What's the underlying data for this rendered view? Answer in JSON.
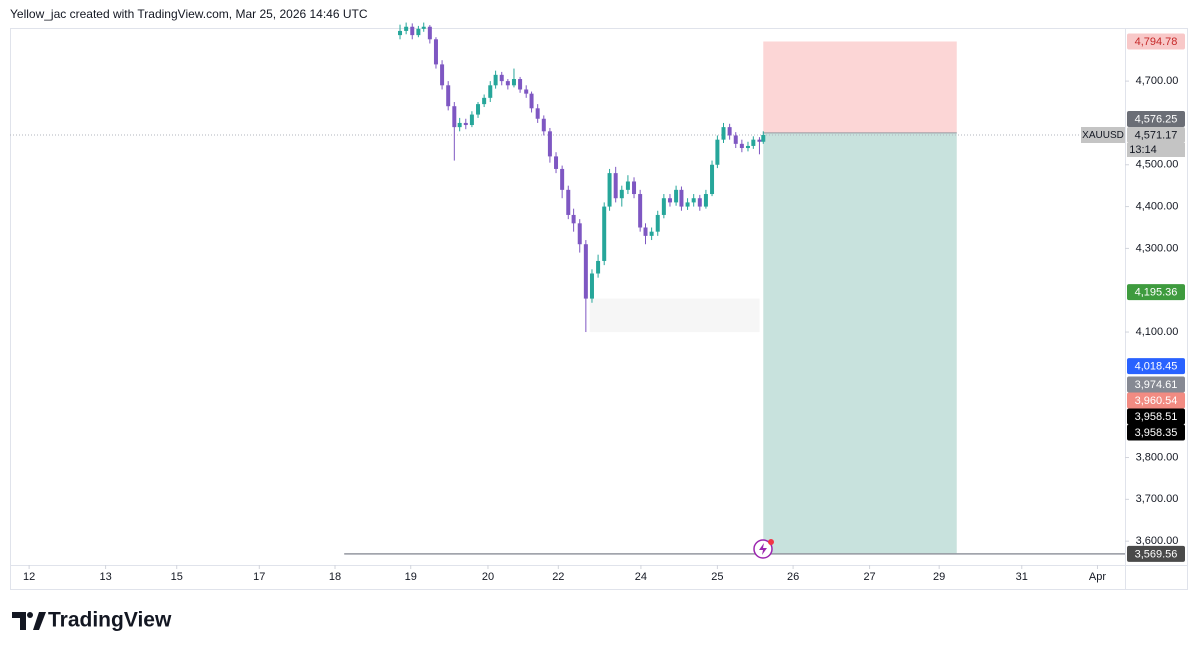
{
  "header": {
    "text": "Yellow_jac created with TradingView.com, Mar 25, 2026 14:46 UTC"
  },
  "footer": {
    "logo_text": "TradingView"
  },
  "chart_data": {
    "type": "candlestick",
    "symbol": "XAUUSD",
    "countdown": "13:14",
    "up_color": "#26a69a",
    "down_color": "#7e57c2",
    "xlim": [
      -0.25,
      14.33
    ],
    "ylim": [
      3543,
      4827
    ],
    "xticks": [
      {
        "value": 0,
        "label": "12"
      },
      {
        "value": 1.0,
        "label": "13"
      },
      {
        "value": 1.93,
        "label": "15"
      },
      {
        "value": 3.01,
        "label": "17"
      },
      {
        "value": 4.0,
        "label": "18"
      },
      {
        "value": 4.99,
        "label": "19"
      },
      {
        "value": 6.0,
        "label": "20"
      },
      {
        "value": 6.92,
        "label": "22"
      },
      {
        "value": 8.0,
        "label": "24"
      },
      {
        "value": 9.0,
        "label": "25"
      },
      {
        "value": 9.99,
        "label": "26"
      },
      {
        "value": 10.99,
        "label": "27"
      },
      {
        "value": 11.9,
        "label": "29"
      },
      {
        "value": 12.98,
        "label": "31"
      },
      {
        "value": 13.97,
        "label": "Apr"
      }
    ],
    "yticks": [
      {
        "value": 3600,
        "label": "3,600.00"
      },
      {
        "value": 3700,
        "label": "3,700.00"
      },
      {
        "value": 3800,
        "label": "3,800.00"
      },
      {
        "value": 4100,
        "label": "4,100.00"
      },
      {
        "value": 4300,
        "label": "4,300.00"
      },
      {
        "value": 4400,
        "label": "4,400.00"
      },
      {
        "value": 4500,
        "label": "4,500.00"
      },
      {
        "value": 4700,
        "label": "4,700.00"
      }
    ],
    "x": [
      4.85,
      4.93,
      5.01,
      5.09,
      5.16,
      5.24,
      5.32,
      5.4,
      5.48,
      5.56,
      5.63,
      5.71,
      5.79,
      5.87,
      5.95,
      6.03,
      6.1,
      6.18,
      6.26,
      6.34,
      6.42,
      6.5,
      6.57,
      6.65,
      6.73,
      6.81,
      6.89,
      6.97,
      7.05,
      7.12,
      7.2,
      7.28,
      7.36,
      7.44,
      7.52,
      7.59,
      7.67,
      7.75,
      7.83,
      7.91,
      7.99,
      8.06,
      8.14,
      8.22,
      8.3,
      8.38,
      8.46,
      8.53,
      8.61,
      8.69,
      8.77,
      8.85,
      8.93,
      9.0,
      9.08,
      9.16,
      9.24,
      9.32,
      9.4,
      9.47,
      9.55,
      9.6
    ],
    "ohlc": [
      [
        4810,
        4835,
        4800,
        4820
      ],
      [
        4820,
        4840,
        4812,
        4830
      ],
      [
        4830,
        4838,
        4800,
        4810
      ],
      [
        4810,
        4832,
        4805,
        4825
      ],
      [
        4825,
        4840,
        4818,
        4830
      ],
      [
        4830,
        4834,
        4790,
        4800
      ],
      [
        4800,
        4805,
        4730,
        4740
      ],
      [
        4740,
        4750,
        4680,
        4690
      ],
      [
        4690,
        4700,
        4630,
        4640
      ],
      [
        4640,
        4650,
        4510,
        4590
      ],
      [
        4590,
        4612,
        4580,
        4600
      ],
      [
        4600,
        4610,
        4585,
        4595
      ],
      [
        4595,
        4628,
        4590,
        4620
      ],
      [
        4620,
        4650,
        4612,
        4645
      ],
      [
        4645,
        4668,
        4638,
        4660
      ],
      [
        4660,
        4700,
        4650,
        4690
      ],
      [
        4690,
        4725,
        4682,
        4715
      ],
      [
        4715,
        4722,
        4690,
        4700
      ],
      [
        4700,
        4705,
        4680,
        4690
      ],
      [
        4690,
        4730,
        4685,
        4705
      ],
      [
        4705,
        4710,
        4672,
        4680
      ],
      [
        4680,
        4690,
        4660,
        4670
      ],
      [
        4670,
        4675,
        4625,
        4635
      ],
      [
        4635,
        4645,
        4600,
        4610
      ],
      [
        4610,
        4618,
        4570,
        4580
      ],
      [
        4580,
        4588,
        4505,
        4520
      ],
      [
        4520,
        4530,
        4480,
        4490
      ],
      [
        4490,
        4498,
        4420,
        4440
      ],
      [
        4440,
        4450,
        4370,
        4380
      ],
      [
        4380,
        4395,
        4340,
        4360
      ],
      [
        4360,
        4370,
        4290,
        4310
      ],
      [
        4310,
        4320,
        4100,
        4180
      ],
      [
        4180,
        4250,
        4170,
        4240
      ],
      [
        4240,
        4285,
        4230,
        4270
      ],
      [
        4270,
        4410,
        4260,
        4400
      ],
      [
        4400,
        4490,
        4390,
        4480
      ],
      [
        4480,
        4495,
        4410,
        4420
      ],
      [
        4420,
        4450,
        4400,
        4440
      ],
      [
        4440,
        4475,
        4430,
        4460
      ],
      [
        4460,
        4470,
        4420,
        4430
      ],
      [
        4430,
        4440,
        4340,
        4350
      ],
      [
        4350,
        4360,
        4310,
        4330
      ],
      [
        4330,
        4350,
        4320,
        4340
      ],
      [
        4340,
        4390,
        4330,
        4380
      ],
      [
        4380,
        4430,
        4372,
        4420
      ],
      [
        4420,
        4430,
        4400,
        4410
      ],
      [
        4410,
        4450,
        4402,
        4440
      ],
      [
        4440,
        4448,
        4390,
        4400
      ],
      [
        4400,
        4420,
        4392,
        4410
      ],
      [
        4410,
        4430,
        4400,
        4420
      ],
      [
        4420,
        4428,
        4390,
        4400
      ],
      [
        4400,
        4440,
        4395,
        4430
      ],
      [
        4430,
        4510,
        4425,
        4500
      ],
      [
        4500,
        4570,
        4492,
        4560
      ],
      [
        4560,
        4600,
        4552,
        4590
      ],
      [
        4590,
        4598,
        4560,
        4570
      ],
      [
        4570,
        4578,
        4540,
        4550
      ],
      [
        4550,
        4560,
        4530,
        4540
      ],
      [
        4540,
        4555,
        4532,
        4545
      ],
      [
        4545,
        4568,
        4538,
        4560
      ],
      [
        4560,
        4566,
        4525,
        4555
      ],
      [
        4555,
        4580,
        4550,
        4571.17
      ]
    ],
    "last_price": {
      "value": 4571.17,
      "label": "4,571.17",
      "color": "#c4c4c4",
      "text_color": "#131722"
    },
    "price_labels": [
      {
        "value": 4794.78,
        "label": "4,794.78",
        "color": "#f8c8c8",
        "text_color": "#c62828"
      },
      {
        "value": 4576.25,
        "label": "4,576.25",
        "color": "#6b6e76",
        "text_color": "#ffffff"
      },
      {
        "value": 4195.36,
        "label": "4,195.36",
        "color": "#3e9b3e",
        "text_color": "#ffffff"
      },
      {
        "value": 4018.45,
        "label": "4,018.45",
        "color": "#2962ff",
        "text_color": "#ffffff"
      },
      {
        "value": 3974.61,
        "label": "3,974.61",
        "color": "#868993",
        "text_color": "#ffffff"
      },
      {
        "value": 3960.54,
        "label": "3,960.54",
        "color": "#f28b82",
        "text_color": "#ffffff"
      },
      {
        "value": 3958.51,
        "label": "3,958.51",
        "color": "#000000",
        "text_color": "#ffffff"
      },
      {
        "value": 3958.35,
        "label": "3,958.35",
        "color": "#000000",
        "text_color": "#ffffff"
      },
      {
        "value": 3569.56,
        "label": "3,569.56",
        "color": "#4a4a4a",
        "text_color": "#ffffff"
      }
    ],
    "position": {
      "x_start": 9.6,
      "x_end": 12.13,
      "entry": 4576.25,
      "stop": 4794.78,
      "target": 3569.56,
      "stop_color": "#fcd6d6",
      "target_color": "#c8e2dd"
    },
    "horizontal_line": {
      "value": 3569.56,
      "x_start": 4.12,
      "color": "#9598a1"
    },
    "zone": {
      "x_start": 7.33,
      "x_end": 9.55,
      "top": 4180,
      "bottom": 4100,
      "color": "#f6f6f6"
    }
  }
}
